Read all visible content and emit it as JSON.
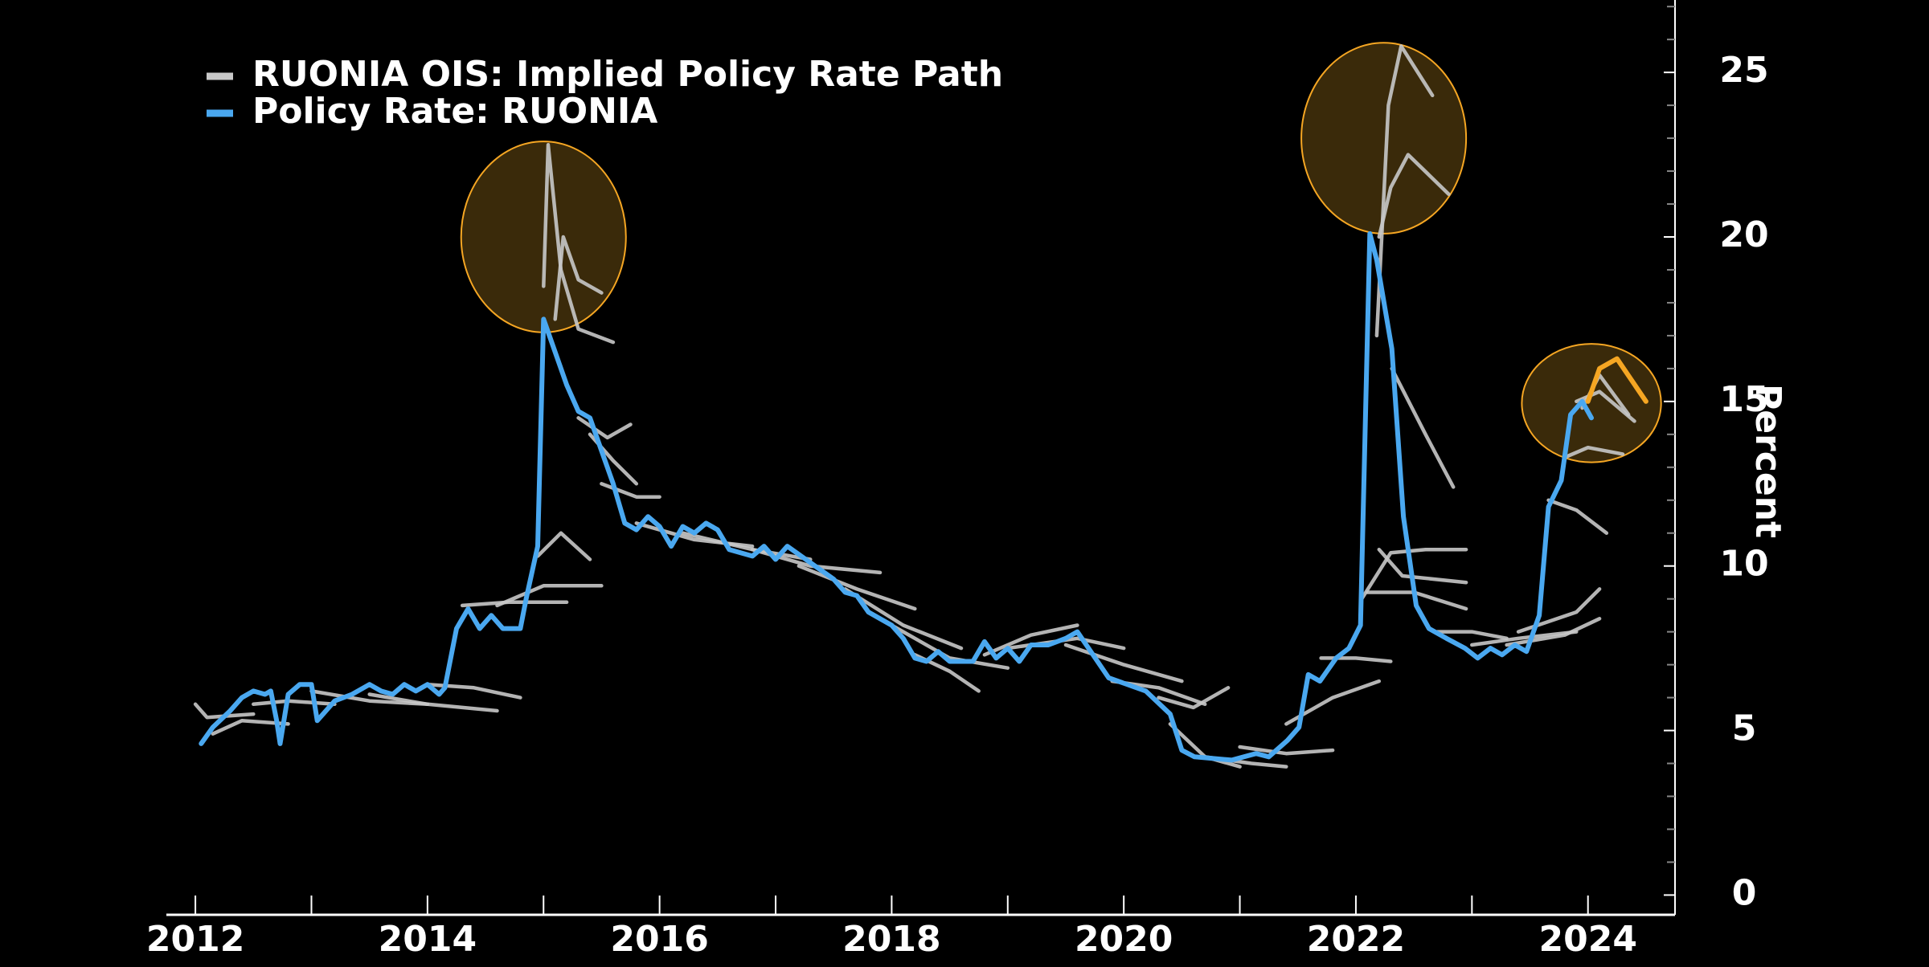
{
  "chart_data": {
    "type": "line",
    "y_axis_title": "Percent",
    "xlim": [
      2011.75,
      2024.75
    ],
    "xticks": [
      2012,
      2014,
      2016,
      2018,
      2020,
      2022,
      2024
    ],
    "xminorticks": [
      2013,
      2015,
      2017,
      2019,
      2021,
      2023
    ],
    "ylim": [
      -0.6,
      27.2
    ],
    "yticks": [
      0,
      5,
      10,
      15,
      20,
      25
    ],
    "yminorticks": [
      1,
      2,
      3,
      4,
      6,
      7,
      8,
      9,
      11,
      12,
      13,
      14,
      16,
      17,
      18,
      19,
      21,
      22,
      23,
      24,
      26,
      27
    ],
    "y_axis_side": "right",
    "legend": "top-left",
    "grid": false,
    "highlight_circles": [
      {
        "x": 2015.0,
        "y": 20.0,
        "rx": 0.71,
        "ry": 2.9
      },
      {
        "x": 2022.24,
        "y": 23.0,
        "rx": 0.71,
        "ry": 2.9
      },
      {
        "x": 2024.03,
        "y": 14.95,
        "rx": 0.6,
        "ry": 1.8
      }
    ],
    "highlight_fill": "#3a2a0a",
    "highlight_stroke": "#f5a623",
    "series": [
      {
        "name": "RUONIA OIS: Implied Policy Rate Path",
        "color": "#c8c8c8",
        "paths": [
          {
            "x": [
              2012.0,
              2012.1,
              2012.5
            ],
            "values": [
              5.8,
              5.4,
              5.5
            ]
          },
          {
            "x": [
              2012.15,
              2012.4,
              2012.8
            ],
            "values": [
              4.9,
              5.3,
              5.2
            ]
          },
          {
            "x": [
              2012.5,
              2012.8,
              2013.2
            ],
            "values": [
              5.8,
              5.9,
              5.8
            ]
          },
          {
            "x": [
              2013.0,
              2013.5,
              2014.0
            ],
            "values": [
              6.2,
              5.9,
              5.8
            ]
          },
          {
            "x": [
              2013.5,
              2014.0,
              2014.6
            ],
            "values": [
              6.1,
              5.8,
              5.6
            ]
          },
          {
            "x": [
              2014.0,
              2014.4,
              2014.8
            ],
            "values": [
              6.4,
              6.3,
              6.0
            ]
          },
          {
            "x": [
              2014.3,
              2014.7,
              2015.2
            ],
            "values": [
              8.8,
              8.9,
              8.9
            ]
          },
          {
            "x": [
              2014.6,
              2015.0,
              2015.5
            ],
            "values": [
              8.8,
              9.4,
              9.4
            ]
          },
          {
            "x": [
              2015.0,
              2015.04,
              2015.15,
              2015.3,
              2015.6
            ],
            "values": [
              18.5,
              22.8,
              19.0,
              17.2,
              16.8
            ]
          },
          {
            "x": [
              2015.1,
              2015.17,
              2015.3,
              2015.5
            ],
            "values": [
              17.5,
              20.0,
              18.7,
              18.3
            ]
          },
          {
            "x": [
              2014.95,
              2015.15,
              2015.4
            ],
            "values": [
              10.3,
              11.0,
              10.2
            ]
          },
          {
            "x": [
              2015.3,
              2015.55,
              2015.75
            ],
            "values": [
              14.5,
              13.9,
              14.3
            ]
          },
          {
            "x": [
              2015.4,
              2015.6,
              2015.8
            ],
            "values": [
              14.0,
              13.2,
              12.5
            ]
          },
          {
            "x": [
              2015.5,
              2015.8,
              2016.0
            ],
            "values": [
              12.5,
              12.1,
              12.1
            ]
          },
          {
            "x": [
              2015.8,
              2016.3,
              2016.8
            ],
            "values": [
              11.3,
              10.8,
              10.6
            ]
          },
          {
            "x": [
              2016.2,
              2016.8,
              2017.3
            ],
            "values": [
              11.0,
              10.5,
              10.2
            ]
          },
          {
            "x": [
              2016.8,
              2017.3,
              2017.9
            ],
            "values": [
              10.5,
              10.0,
              9.8
            ]
          },
          {
            "x": [
              2017.2,
              2017.7,
              2018.2
            ],
            "values": [
              10.0,
              9.3,
              8.7
            ]
          },
          {
            "x": [
              2017.6,
              2018.1,
              2018.6
            ],
            "values": [
              9.3,
              8.2,
              7.5
            ]
          },
          {
            "x": [
              2018.0,
              2018.5,
              2019.0
            ],
            "values": [
              8.2,
              7.2,
              6.9
            ]
          },
          {
            "x": [
              2018.2,
              2018.5,
              2018.75
            ],
            "values": [
              7.3,
              6.8,
              6.2
            ]
          },
          {
            "x": [
              2018.8,
              2019.2,
              2019.6
            ],
            "values": [
              7.3,
              7.9,
              8.2
            ]
          },
          {
            "x": [
              2019.0,
              2019.6,
              2020.0
            ],
            "values": [
              7.5,
              7.8,
              7.5
            ]
          },
          {
            "x": [
              2019.5,
              2020.0,
              2020.5
            ],
            "values": [
              7.6,
              7.0,
              6.5
            ]
          },
          {
            "x": [
              2019.9,
              2020.3,
              2020.7
            ],
            "values": [
              6.5,
              6.3,
              5.8
            ]
          },
          {
            "x": [
              2020.3,
              2020.6,
              2020.9
            ],
            "values": [
              6.0,
              5.7,
              6.3
            ]
          },
          {
            "x": [
              2020.4,
              2020.7,
              2021.0
            ],
            "values": [
              5.2,
              4.2,
              3.9
            ]
          },
          {
            "x": [
              2020.7,
              2021.1,
              2021.4
            ],
            "values": [
              4.2,
              4.0,
              3.9
            ]
          },
          {
            "x": [
              2021.0,
              2021.4,
              2021.8
            ],
            "values": [
              4.5,
              4.3,
              4.4
            ]
          },
          {
            "x": [
              2021.4,
              2021.8,
              2022.2
            ],
            "values": [
              5.2,
              6.0,
              6.5
            ]
          },
          {
            "x": [
              2021.7,
              2022.0,
              2022.3
            ],
            "values": [
              7.2,
              7.2,
              7.1
            ]
          },
          {
            "x": [
              2022.18,
              2022.28,
              2022.39,
              2022.66
            ],
            "values": [
              17.0,
              24.0,
              25.8,
              24.3
            ]
          },
          {
            "x": [
              2022.2,
              2022.3,
              2022.45,
              2022.8
            ],
            "values": [
              20.0,
              21.5,
              22.5,
              21.3
            ]
          },
          {
            "x": [
              2022.31,
              2022.6,
              2022.84
            ],
            "values": [
              16.0,
              14.0,
              12.4
            ]
          },
          {
            "x": [
              2022.05,
              2022.3,
              2022.6,
              2022.95
            ],
            "values": [
              9.0,
              10.4,
              10.5,
              10.5
            ]
          },
          {
            "x": [
              2022.2,
              2022.4,
              2022.95
            ],
            "values": [
              10.5,
              9.7,
              9.5
            ]
          },
          {
            "x": [
              2022.1,
              2022.5,
              2022.95
            ],
            "values": [
              9.2,
              9.2,
              8.7
            ]
          },
          {
            "x": [
              2022.7,
              2023.0,
              2023.3
            ],
            "values": [
              8.0,
              8.0,
              7.8
            ]
          },
          {
            "x": [
              2023.0,
              2023.4,
              2023.9
            ],
            "values": [
              7.6,
              7.8,
              8.0
            ]
          },
          {
            "x": [
              2023.3,
              2023.8,
              2024.1
            ],
            "values": [
              7.6,
              7.9,
              8.4
            ]
          },
          {
            "x": [
              2023.4,
              2023.9,
              2024.1
            ],
            "values": [
              8.0,
              8.6,
              9.3
            ]
          },
          {
            "x": [
              2023.66,
              2023.9,
              2024.16
            ],
            "values": [
              12.0,
              11.7,
              11.0
            ]
          },
          {
            "x": [
              2023.8,
              2024.0,
              2024.3
            ],
            "values": [
              13.3,
              13.6,
              13.4
            ]
          },
          {
            "x": [
              2023.9,
              2024.1,
              2024.4
            ],
            "values": [
              15.0,
              15.3,
              14.4
            ]
          },
          {
            "x": [
              2023.95,
              2024.1,
              2024.35
            ],
            "values": [
              14.8,
              15.8,
              14.6
            ]
          },
          {
            "x": [
              2024.0,
              2024.1,
              2024.25,
              2024.5
            ],
            "values": [
              15.0,
              16.0,
              16.3,
              15.0
            ],
            "color": "#f5a623"
          }
        ]
      },
      {
        "name": "Policy Rate: RUONIA",
        "color": "#4aa8f0",
        "x": [
          2012.05,
          2012.15,
          2012.3,
          2012.4,
          2012.5,
          2012.6,
          2012.65,
          2012.7,
          2012.73,
          2012.8,
          2012.9,
          2013.0,
          2013.05,
          2013.2,
          2013.35,
          2013.5,
          2013.6,
          2013.7,
          2013.8,
          2013.9,
          2014.0,
          2014.1,
          2014.15,
          2014.25,
          2014.35,
          2014.45,
          2014.55,
          2014.65,
          2014.8,
          2014.85,
          2014.95,
          2015.0,
          2015.1,
          2015.2,
          2015.3,
          2015.4,
          2015.5,
          2015.6,
          2015.7,
          2015.8,
          2015.9,
          2016.0,
          2016.1,
          2016.2,
          2016.3,
          2016.4,
          2016.5,
          2016.6,
          2016.8,
          2016.9,
          2017.0,
          2017.1,
          2017.3,
          2017.5,
          2017.6,
          2017.7,
          2017.8,
          2018.0,
          2018.1,
          2018.2,
          2018.3,
          2018.4,
          2018.5,
          2018.7,
          2018.8,
          2018.9,
          2019.0,
          2019.1,
          2019.2,
          2019.35,
          2019.5,
          2019.6,
          2019.87,
          2020.19,
          2020.4,
          2020.5,
          2020.61,
          2020.93,
          2021.14,
          2021.25,
          2021.41,
          2021.51,
          2021.59,
          2021.69,
          2021.83,
          2021.94,
          2022.04,
          2022.12,
          2022.18,
          2022.31,
          2022.41,
          2022.52,
          2022.63,
          2022.78,
          2022.94,
          2023.05,
          2023.16,
          2023.26,
          2023.37,
          2023.47,
          2023.58,
          2023.66,
          2023.77,
          2023.85,
          2023.95,
          2024.03
        ],
        "values": [
          4.6,
          5.1,
          5.6,
          6.0,
          6.2,
          6.1,
          6.2,
          5.3,
          4.6,
          6.1,
          6.4,
          6.4,
          5.3,
          5.9,
          6.1,
          6.4,
          6.2,
          6.1,
          6.4,
          6.2,
          6.4,
          6.1,
          6.3,
          8.1,
          8.7,
          8.1,
          8.5,
          8.1,
          8.1,
          9.0,
          10.6,
          17.5,
          16.5,
          15.5,
          14.7,
          14.5,
          13.5,
          12.5,
          11.3,
          11.1,
          11.5,
          11.2,
          10.6,
          11.2,
          11.0,
          11.3,
          11.1,
          10.5,
          10.3,
          10.6,
          10.2,
          10.6,
          10.1,
          9.6,
          9.2,
          9.1,
          8.6,
          8.2,
          7.8,
          7.2,
          7.1,
          7.4,
          7.1,
          7.1,
          7.7,
          7.2,
          7.5,
          7.1,
          7.6,
          7.6,
          7.8,
          8.0,
          6.6,
          6.2,
          5.5,
          4.4,
          4.2,
          4.1,
          4.3,
          4.2,
          4.7,
          5.1,
          6.7,
          6.5,
          7.2,
          7.5,
          8.2,
          20.1,
          19.3,
          16.6,
          11.5,
          8.8,
          8.1,
          7.8,
          7.5,
          7.2,
          7.5,
          7.3,
          7.6,
          7.4,
          8.5,
          11.8,
          12.6,
          14.6,
          15.0,
          14.5
        ]
      }
    ]
  }
}
